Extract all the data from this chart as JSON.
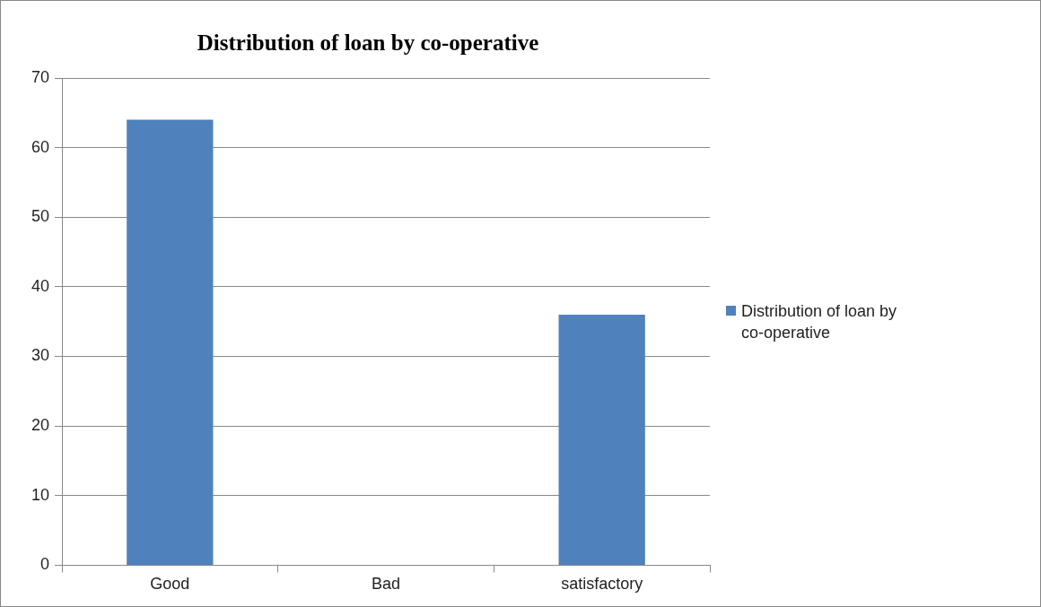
{
  "chart_data": {
    "type": "bar",
    "title": "Distribution of loan by co-operative",
    "categories": [
      "Good",
      "Bad",
      "satisfactory"
    ],
    "series": [
      {
        "name": "Distribution of loan by co-operative",
        "color": "#4f81bd",
        "values": [
          64,
          0,
          36
        ]
      }
    ],
    "ylim": [
      0,
      70
    ],
    "yticks": [
      0,
      10,
      20,
      30,
      40,
      50,
      60,
      70
    ],
    "grid": "y",
    "legend": "right"
  }
}
